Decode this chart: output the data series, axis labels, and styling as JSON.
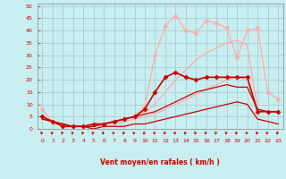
{
  "background_color": "#c8eef0",
  "grid_color": "#a0c8cc",
  "xlabel": "Vent moyen/en rafales ( km/h )",
  "xlabel_color": "#cc0000",
  "tick_color": "#cc0000",
  "spine_color": "#888888",
  "xlim": [
    -0.5,
    23.5
  ],
  "ylim": [
    0,
    51
  ],
  "xticks": [
    0,
    1,
    2,
    3,
    4,
    5,
    6,
    7,
    8,
    9,
    10,
    11,
    12,
    13,
    14,
    15,
    16,
    17,
    18,
    19,
    20,
    21,
    22,
    23
  ],
  "yticks": [
    0,
    5,
    10,
    15,
    20,
    25,
    30,
    35,
    40,
    45,
    50
  ],
  "lines": [
    {
      "x": [
        0,
        1,
        2,
        3,
        4,
        5,
        6,
        7,
        8,
        9,
        10,
        11,
        12,
        13,
        14,
        15,
        16,
        17,
        18,
        19,
        20,
        21,
        22,
        23
      ],
      "y": [
        8,
        3,
        1,
        1,
        1,
        2,
        2,
        3,
        4,
        5,
        9,
        30,
        42,
        46,
        40,
        39,
        44,
        43,
        41,
        29,
        40,
        41,
        15,
        12
      ],
      "color": "#ffaaaa",
      "lw": 0.9,
      "marker": "D",
      "ms": 2.5,
      "zorder": 2
    },
    {
      "x": [
        0,
        1,
        2,
        3,
        4,
        5,
        6,
        7,
        8,
        9,
        10,
        11,
        12,
        13,
        14,
        15,
        16,
        17,
        18,
        19,
        20,
        21,
        22,
        23
      ],
      "y": [
        5,
        3,
        2,
        1,
        1,
        1,
        2,
        3,
        4,
        5,
        7,
        10,
        15,
        20,
        24,
        28,
        31,
        33,
        35,
        36,
        34,
        8,
        7,
        7
      ],
      "color": "#ffaaaa",
      "lw": 0.9,
      "marker": null,
      "ms": 0,
      "zorder": 2
    },
    {
      "x": [
        0,
        1,
        2,
        3,
        4,
        5,
        6,
        7,
        8,
        9,
        10,
        11,
        12,
        13,
        14,
        15,
        16,
        17,
        18,
        19,
        20,
        21,
        22,
        23
      ],
      "y": [
        5,
        3,
        2,
        1,
        1,
        1,
        2,
        2,
        3,
        4,
        5,
        6,
        8,
        10,
        12,
        14,
        16,
        18,
        20,
        21,
        20,
        8,
        7,
        7
      ],
      "color": "#ffaaaa",
      "lw": 0.9,
      "marker": null,
      "ms": 0,
      "zorder": 2
    },
    {
      "x": [
        0,
        1,
        2,
        3,
        4,
        5,
        6,
        7,
        8,
        9,
        10,
        11,
        12,
        13,
        14,
        15,
        16,
        17,
        18,
        19,
        20,
        21,
        22,
        23
      ],
      "y": [
        5,
        3,
        1,
        1,
        1,
        2,
        2,
        3,
        4,
        5,
        8,
        15,
        21,
        23,
        21,
        20,
        21,
        21,
        21,
        21,
        21,
        7,
        7,
        7
      ],
      "color": "#cc0000",
      "lw": 1.2,
      "marker": "D",
      "ms": 2.5,
      "zorder": 4
    },
    {
      "x": [
        0,
        1,
        2,
        3,
        4,
        5,
        6,
        7,
        8,
        9,
        10,
        11,
        12,
        13,
        14,
        15,
        16,
        17,
        18,
        19,
        20,
        21,
        22,
        23
      ],
      "y": [
        4,
        3,
        2,
        1,
        1,
        1,
        2,
        3,
        4,
        5,
        6,
        7,
        9,
        11,
        13,
        15,
        16,
        17,
        18,
        17,
        17,
        8,
        7,
        7
      ],
      "color": "#cc0000",
      "lw": 0.9,
      "marker": null,
      "ms": 0,
      "zorder": 3
    },
    {
      "x": [
        0,
        1,
        2,
        3,
        4,
        5,
        6,
        7,
        8,
        9,
        10,
        11,
        12,
        13,
        14,
        15,
        16,
        17,
        18,
        19,
        20,
        21,
        22,
        23
      ],
      "y": [
        4,
        3,
        2,
        1,
        1,
        0,
        1,
        1,
        1,
        2,
        2,
        3,
        4,
        5,
        6,
        7,
        8,
        9,
        10,
        11,
        10,
        4,
        3,
        2
      ],
      "color": "#cc0000",
      "lw": 0.9,
      "marker": null,
      "ms": 0,
      "zorder": 3
    }
  ]
}
